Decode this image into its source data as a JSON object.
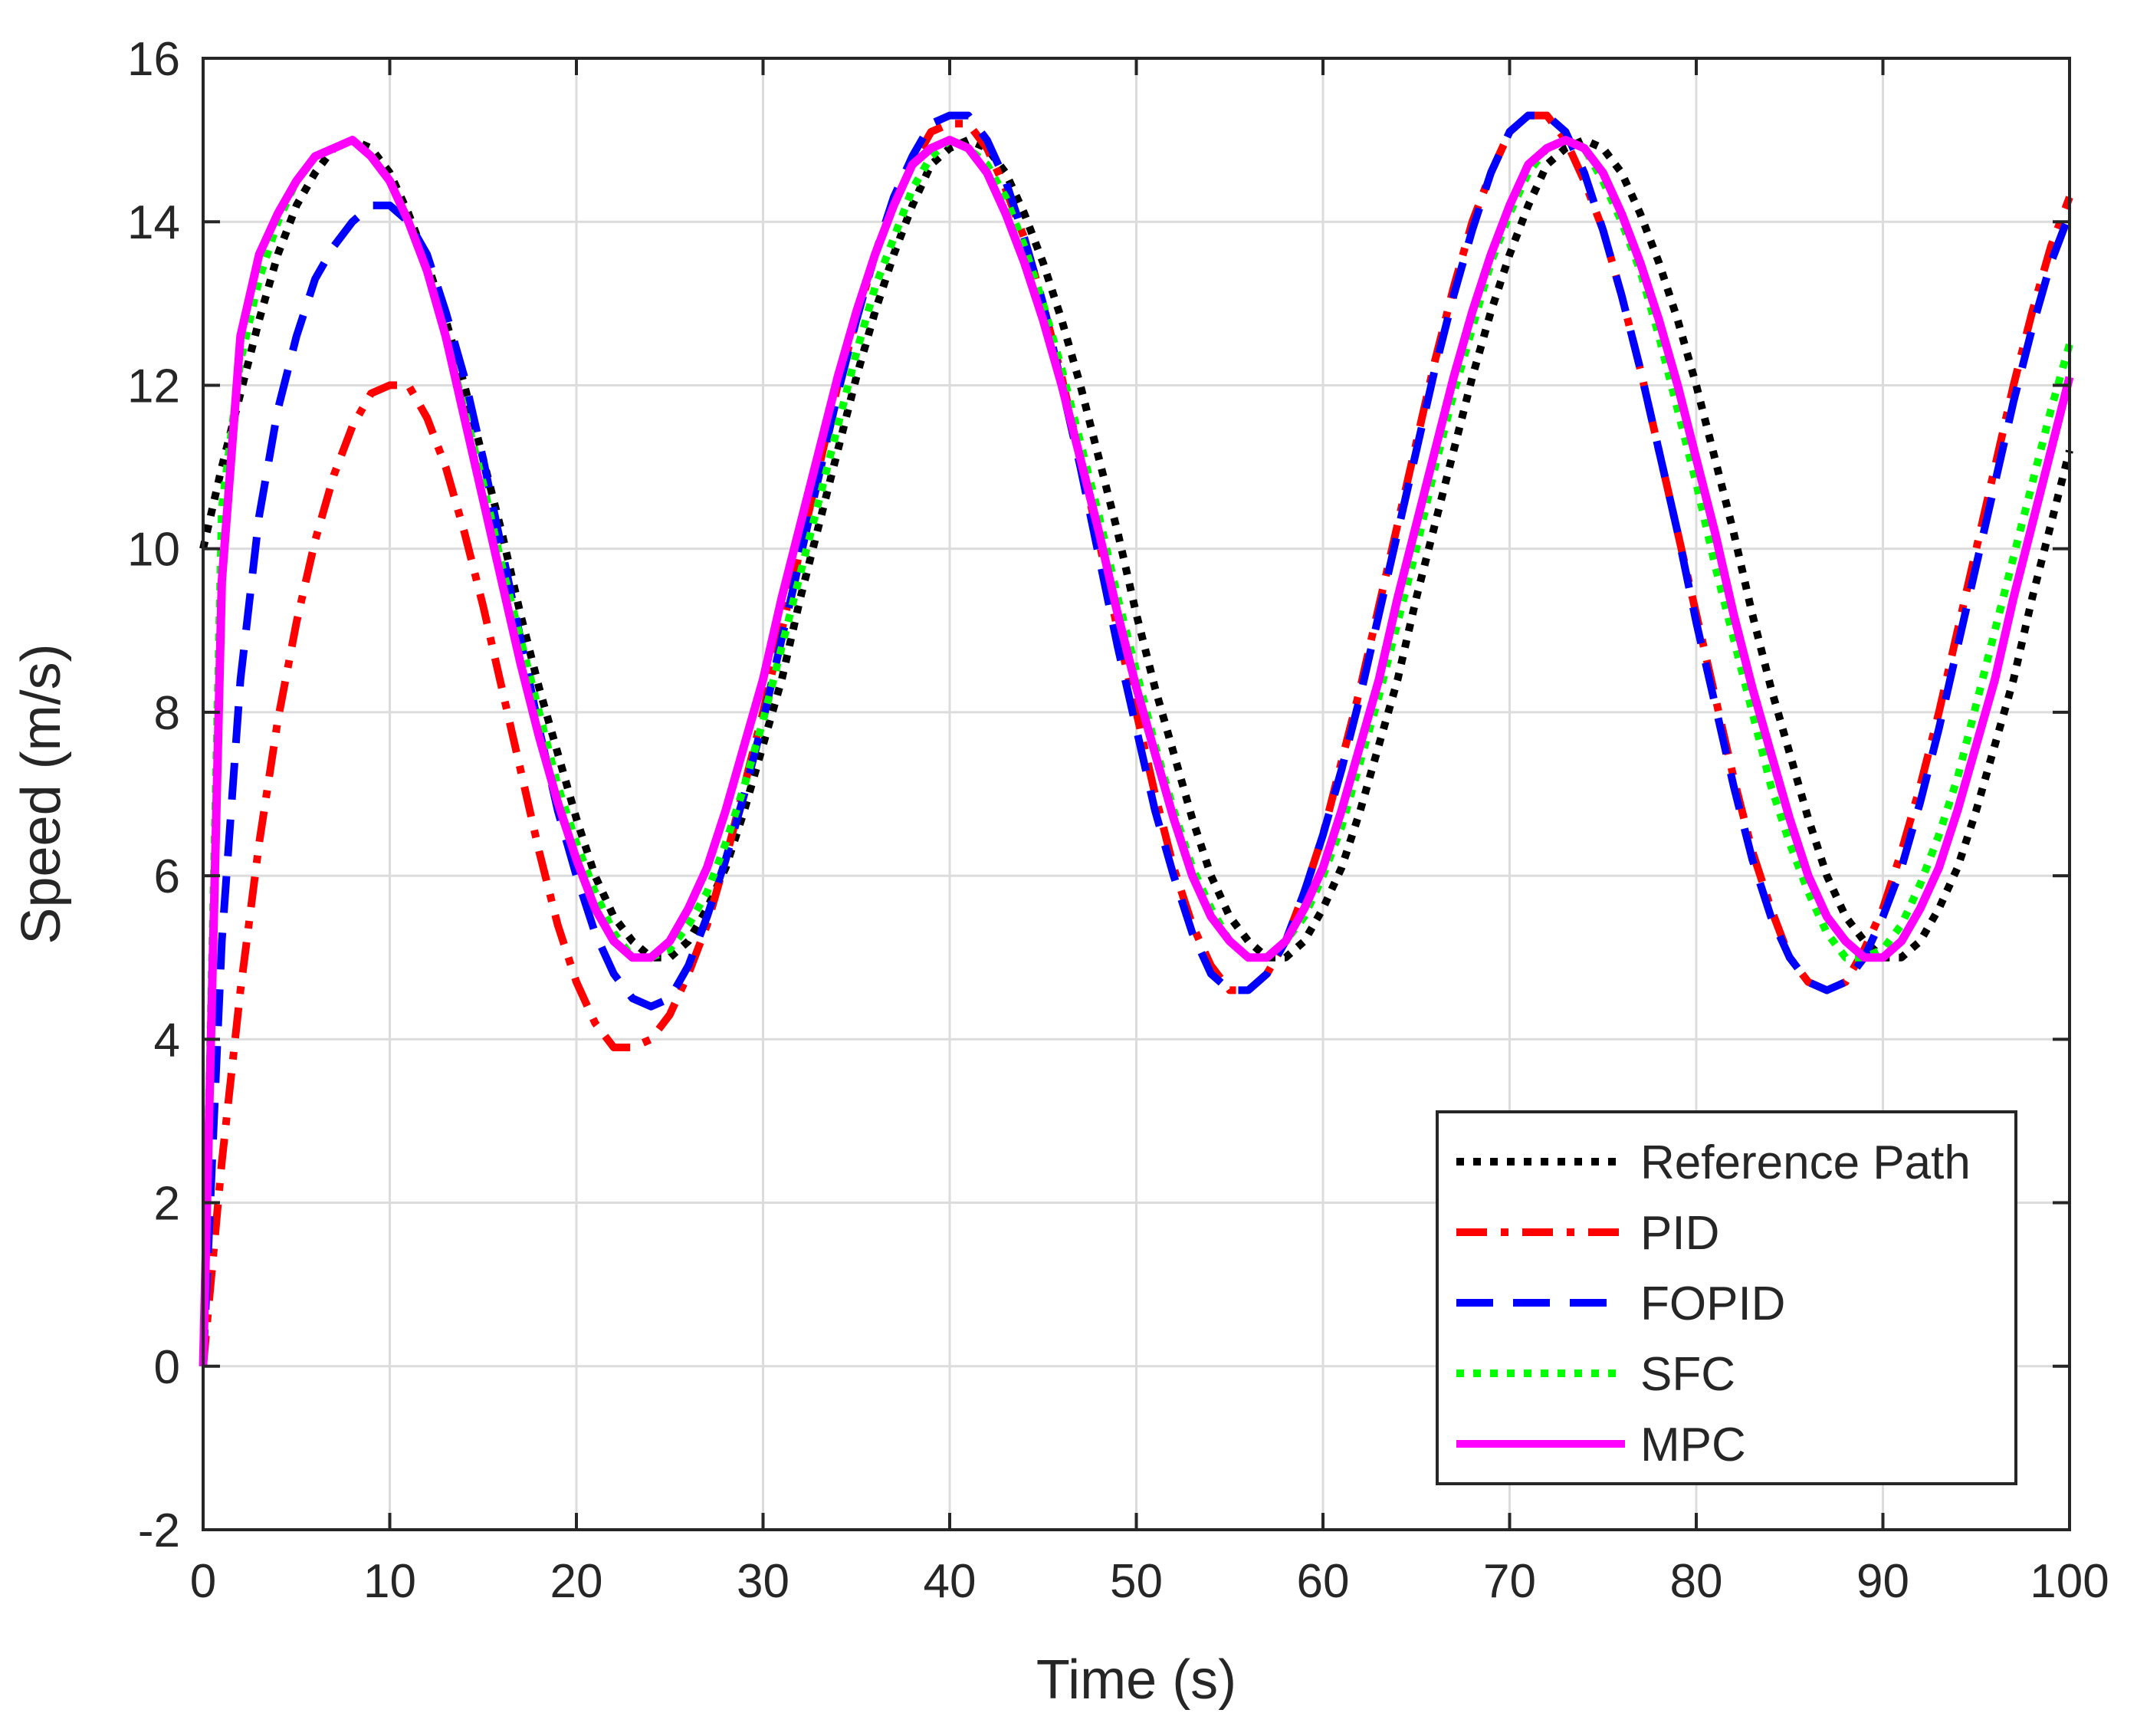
{
  "chart_data": {
    "type": "line",
    "title": "",
    "xlabel": "Time (s)",
    "ylabel": "Speed (m/s)",
    "xlim": [
      0,
      100
    ],
    "ylim": [
      -2,
      16
    ],
    "xticks": [
      0,
      10,
      20,
      30,
      40,
      50,
      60,
      70,
      80,
      90,
      100
    ],
    "yticks": [
      -2,
      0,
      2,
      4,
      6,
      8,
      10,
      12,
      14,
      16
    ],
    "grid": true,
    "legend_position": "bottom-right",
    "series": [
      {
        "name": "Reference Path",
        "color": "#000000",
        "style": "dotted",
        "x": [
          0,
          1,
          2,
          3,
          4,
          5,
          6,
          7,
          8,
          9,
          10,
          11,
          12,
          13,
          14,
          15,
          16,
          17,
          18,
          19,
          20,
          21,
          22,
          23,
          24,
          25,
          26,
          27,
          28,
          29,
          30,
          31,
          32,
          33,
          34,
          35,
          36,
          37,
          38,
          39,
          40,
          41,
          42,
          43,
          44,
          45,
          46,
          47,
          48,
          49,
          50,
          51,
          52,
          53,
          54,
          55,
          56,
          57,
          58,
          59,
          60,
          61,
          62,
          63,
          64,
          65,
          66,
          67,
          68,
          69,
          70,
          71,
          72,
          73,
          74,
          75,
          76,
          77,
          78,
          79,
          80,
          81,
          82,
          83,
          84,
          85,
          86,
          87,
          88,
          89,
          90,
          91,
          92,
          93,
          94,
          95,
          96,
          97,
          98,
          99,
          100
        ],
        "y": [
          10.0,
          11.0,
          11.9,
          12.8,
          13.6,
          14.2,
          14.6,
          14.9,
          15.0,
          14.9,
          14.6,
          14.1,
          13.5,
          12.8,
          12.0,
          11.1,
          10.2,
          9.2,
          8.3,
          7.5,
          6.7,
          6.0,
          5.5,
          5.2,
          5.0,
          5.0,
          5.2,
          5.6,
          6.1,
          6.8,
          7.6,
          8.4,
          9.4,
          10.3,
          11.2,
          12.1,
          12.9,
          13.6,
          14.2,
          14.7,
          14.9,
          15.0,
          14.9,
          14.6,
          14.1,
          13.5,
          12.8,
          12.0,
          11.1,
          10.2,
          9.2,
          8.3,
          7.5,
          6.7,
          6.0,
          5.5,
          5.2,
          5.0,
          5.0,
          5.2,
          5.6,
          6.1,
          6.8,
          7.6,
          8.4,
          9.4,
          10.3,
          11.2,
          12.1,
          12.9,
          13.6,
          14.2,
          14.7,
          14.9,
          15.0,
          14.9,
          14.6,
          14.1,
          13.5,
          12.8,
          12.0,
          11.1,
          10.2,
          9.2,
          8.3,
          7.5,
          6.7,
          6.0,
          5.5,
          5.2,
          5.0,
          5.0,
          5.2,
          5.6,
          6.1,
          6.8,
          7.6,
          8.4,
          9.4,
          10.3,
          11.2
        ]
      },
      {
        "name": "PID",
        "color": "#ff0000",
        "style": "dashdot",
        "x": [
          0,
          1,
          2,
          3,
          4,
          5,
          6,
          7,
          8,
          9,
          10,
          11,
          12,
          13,
          14,
          15,
          16,
          17,
          18,
          19,
          20,
          21,
          22,
          23,
          24,
          25,
          26,
          27,
          28,
          29,
          30,
          31,
          32,
          33,
          34,
          35,
          36,
          37,
          38,
          39,
          40,
          41,
          42,
          43,
          44,
          45,
          46,
          47,
          48,
          49,
          50,
          51,
          52,
          53,
          54,
          55,
          56,
          57,
          58,
          59,
          60,
          61,
          62,
          63,
          64,
          65,
          66,
          67,
          68,
          69,
          70,
          71,
          72,
          73,
          74,
          75,
          76,
          77,
          78,
          79,
          80,
          81,
          82,
          83,
          84,
          85,
          86,
          87,
          88,
          89,
          90,
          91,
          92,
          93,
          94,
          95,
          96,
          97,
          98,
          99,
          100
        ],
        "y": [
          0.0,
          2.5,
          4.6,
          6.4,
          7.9,
          9.1,
          10.1,
          10.9,
          11.5,
          11.9,
          12.0,
          12.0,
          11.6,
          11.0,
          10.2,
          9.3,
          8.3,
          7.3,
          6.3,
          5.4,
          4.7,
          4.2,
          3.9,
          3.9,
          4.0,
          4.3,
          4.8,
          5.4,
          6.2,
          7.1,
          8.0,
          9.0,
          10.0,
          11.0,
          12.0,
          12.8,
          13.6,
          14.2,
          14.7,
          15.1,
          15.2,
          15.2,
          14.9,
          14.4,
          13.8,
          13.0,
          12.1,
          11.1,
          10.1,
          9.0,
          8.0,
          7.0,
          6.1,
          5.4,
          4.9,
          4.6,
          4.6,
          4.8,
          5.2,
          5.8,
          6.5,
          7.4,
          8.3,
          9.3,
          10.3,
          11.3,
          12.3,
          13.2,
          14.0,
          14.6,
          15.1,
          15.3,
          15.3,
          15.0,
          14.5,
          13.9,
          13.1,
          12.2,
          11.2,
          10.2,
          9.2,
          8.2,
          7.2,
          6.3,
          5.6,
          5.0,
          4.7,
          4.6,
          4.7,
          5.1,
          5.6,
          6.3,
          7.1,
          8.0,
          9.0,
          10.0,
          11.0,
          12.0,
          12.9,
          13.7,
          14.3
        ]
      },
      {
        "name": "FOPID",
        "color": "#0000ff",
        "style": "dashed",
        "x": [
          0,
          1,
          2,
          3,
          4,
          5,
          6,
          7,
          8,
          9,
          10,
          11,
          12,
          13,
          14,
          15,
          16,
          17,
          18,
          19,
          20,
          21,
          22,
          23,
          24,
          25,
          26,
          27,
          28,
          29,
          30,
          31,
          32,
          33,
          34,
          35,
          36,
          37,
          38,
          39,
          40,
          41,
          42,
          43,
          44,
          45,
          46,
          47,
          48,
          49,
          50,
          51,
          52,
          53,
          54,
          55,
          56,
          57,
          58,
          59,
          60,
          61,
          62,
          63,
          64,
          65,
          66,
          67,
          68,
          69,
          70,
          71,
          72,
          73,
          74,
          75,
          76,
          77,
          78,
          79,
          80,
          81,
          82,
          83,
          84,
          85,
          86,
          87,
          88,
          89,
          90,
          91,
          92,
          93,
          94,
          95,
          96,
          97,
          98,
          99,
          100
        ],
        "y": [
          0.0,
          5.2,
          8.4,
          10.4,
          11.7,
          12.6,
          13.3,
          13.7,
          14.0,
          14.2,
          14.2,
          14.0,
          13.6,
          12.9,
          12.1,
          11.1,
          10.0,
          8.9,
          7.8,
          6.8,
          6.0,
          5.3,
          4.8,
          4.5,
          4.4,
          4.5,
          4.9,
          5.5,
          6.2,
          7.0,
          7.9,
          8.9,
          9.9,
          10.9,
          11.9,
          12.8,
          13.6,
          14.3,
          14.8,
          15.2,
          15.3,
          15.3,
          15.0,
          14.5,
          13.8,
          13.0,
          12.0,
          11.0,
          9.9,
          8.8,
          7.8,
          6.8,
          6.0,
          5.3,
          4.8,
          4.6,
          4.6,
          4.8,
          5.2,
          5.8,
          6.5,
          7.3,
          8.2,
          9.2,
          10.2,
          11.2,
          12.2,
          13.1,
          13.9,
          14.6,
          15.1,
          15.3,
          15.3,
          15.1,
          14.6,
          13.9,
          13.1,
          12.2,
          11.2,
          10.2,
          9.1,
          8.1,
          7.1,
          6.2,
          5.5,
          5.0,
          4.7,
          4.6,
          4.7,
          5.0,
          5.5,
          6.1,
          6.9,
          7.8,
          8.8,
          9.8,
          10.8,
          11.8,
          12.7,
          13.5,
          14.1
        ]
      },
      {
        "name": "SFC",
        "color": "#00ff00",
        "style": "dotted",
        "x": [
          0,
          1,
          2,
          3,
          4,
          5,
          6,
          7,
          8,
          9,
          10,
          11,
          12,
          13,
          14,
          15,
          16,
          17,
          18,
          19,
          20,
          21,
          22,
          23,
          24,
          25,
          26,
          27,
          28,
          29,
          30,
          31,
          32,
          33,
          34,
          35,
          36,
          37,
          38,
          39,
          40,
          41,
          42,
          43,
          44,
          45,
          46,
          47,
          48,
          49,
          50,
          51,
          52,
          53,
          54,
          55,
          56,
          57,
          58,
          59,
          60,
          61,
          62,
          63,
          64,
          65,
          66,
          67,
          68,
          69,
          70,
          71,
          72,
          73,
          74,
          75,
          76,
          77,
          78,
          79,
          80,
          81,
          82,
          83,
          84,
          85,
          86,
          87,
          88,
          89,
          90,
          91,
          92,
          93,
          94,
          95,
          96,
          97,
          98,
          99,
          100
        ],
        "y": [
          0.0,
          10.5,
          12.3,
          13.3,
          14.0,
          14.5,
          14.8,
          14.9,
          15.0,
          14.8,
          14.5,
          14.0,
          13.4,
          12.6,
          11.7,
          10.8,
          9.8,
          8.9,
          8.0,
          7.1,
          6.4,
          5.8,
          5.3,
          5.0,
          5.0,
          5.1,
          5.4,
          5.8,
          6.4,
          7.1,
          7.9,
          8.8,
          9.7,
          10.6,
          11.5,
          12.4,
          13.2,
          13.8,
          14.4,
          14.8,
          15.0,
          14.9,
          14.7,
          14.3,
          13.7,
          13.0,
          12.2,
          11.3,
          10.4,
          9.4,
          8.5,
          7.6,
          6.8,
          6.1,
          5.6,
          5.2,
          5.0,
          5.0,
          5.2,
          5.5,
          6.0,
          6.6,
          7.4,
          8.2,
          9.1,
          10.0,
          11.0,
          11.9,
          12.7,
          13.5,
          14.1,
          14.6,
          14.9,
          15.0,
          14.9,
          14.5,
          14.0,
          13.4,
          12.6,
          11.7,
          10.8,
          9.8,
          8.9,
          8.0,
          7.1,
          6.4,
          5.8,
          5.3,
          5.0,
          5.0,
          5.1,
          5.4,
          5.9,
          6.5,
          7.2,
          8.1,
          9.0,
          9.9,
          10.8,
          11.7,
          12.5
        ]
      },
      {
        "name": "MPC",
        "color": "#ff00ff",
        "style": "solid",
        "x": [
          0,
          1,
          2,
          3,
          4,
          5,
          6,
          7,
          8,
          9,
          10,
          11,
          12,
          13,
          14,
          15,
          16,
          17,
          18,
          19,
          20,
          21,
          22,
          23,
          24,
          25,
          26,
          27,
          28,
          29,
          30,
          31,
          32,
          33,
          34,
          35,
          36,
          37,
          38,
          39,
          40,
          41,
          42,
          43,
          44,
          45,
          46,
          47,
          48,
          49,
          50,
          51,
          52,
          53,
          54,
          55,
          56,
          57,
          58,
          59,
          60,
          61,
          62,
          63,
          64,
          65,
          66,
          67,
          68,
          69,
          70,
          71,
          72,
          73,
          74,
          75,
          76,
          77,
          78,
          79,
          80,
          81,
          82,
          83,
          84,
          85,
          86,
          87,
          88,
          89,
          90,
          91,
          92,
          93,
          94,
          95,
          96,
          97,
          98,
          99,
          100
        ],
        "y": [
          0.0,
          9.6,
          12.6,
          13.6,
          14.1,
          14.5,
          14.8,
          14.9,
          15.0,
          14.8,
          14.5,
          14.0,
          13.4,
          12.6,
          11.6,
          10.6,
          9.6,
          8.6,
          7.7,
          6.9,
          6.2,
          5.6,
          5.2,
          5.0,
          5.0,
          5.2,
          5.6,
          6.1,
          6.8,
          7.6,
          8.4,
          9.4,
          10.3,
          11.2,
          12.1,
          12.9,
          13.6,
          14.2,
          14.7,
          14.9,
          15.0,
          14.9,
          14.6,
          14.1,
          13.5,
          12.8,
          12.0,
          11.1,
          10.2,
          9.2,
          8.3,
          7.5,
          6.7,
          6.0,
          5.5,
          5.2,
          5.0,
          5.0,
          5.2,
          5.6,
          6.1,
          6.8,
          7.6,
          8.4,
          9.4,
          10.3,
          11.2,
          12.1,
          12.9,
          13.6,
          14.2,
          14.7,
          14.9,
          15.0,
          14.9,
          14.6,
          14.1,
          13.5,
          12.8,
          12.0,
          11.1,
          10.2,
          9.2,
          8.3,
          7.5,
          6.7,
          6.0,
          5.5,
          5.2,
          5.0,
          5.0,
          5.2,
          5.6,
          6.1,
          6.8,
          7.6,
          8.4,
          9.4,
          10.3,
          11.2,
          12.1
        ]
      }
    ]
  }
}
